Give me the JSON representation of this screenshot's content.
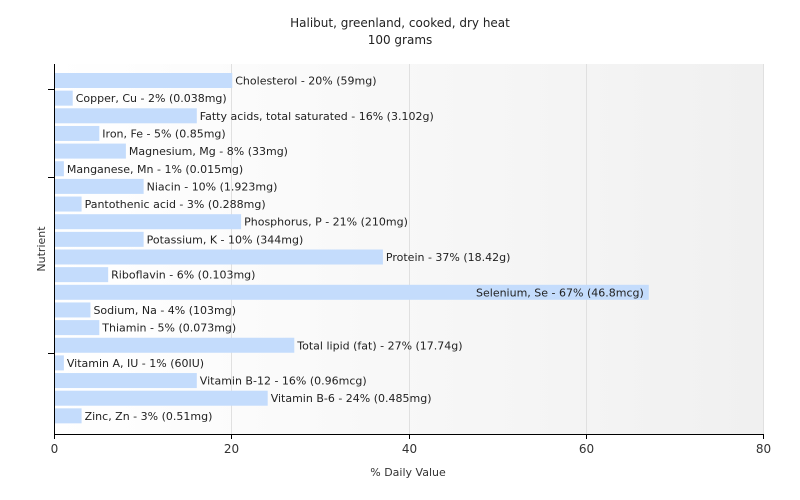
{
  "chart_data": {
    "type": "bar",
    "orientation": "horizontal",
    "title": "Halibut, greenland, cooked, dry heat",
    "subtitle": "100 grams",
    "xlabel": "% Daily Value",
    "ylabel": "Nutrient",
    "xlim": [
      0,
      80
    ],
    "xticks": [
      0,
      20,
      40,
      60,
      80
    ],
    "grid": true,
    "bar_color": "#c4dcfc",
    "categories": [
      "Cholesterol",
      "Copper, Cu",
      "Fatty acids, total saturated",
      "Iron, Fe",
      "Magnesium, Mg",
      "Manganese, Mn",
      "Niacin",
      "Pantothenic acid",
      "Phosphorus, P",
      "Potassium, K",
      "Protein",
      "Riboflavin",
      "Selenium, Se",
      "Sodium, Na",
      "Thiamin",
      "Total lipid (fat)",
      "Vitamin A, IU",
      "Vitamin B-12",
      "Vitamin B-6",
      "Zinc, Zn"
    ],
    "values": [
      20,
      2,
      16,
      5,
      8,
      1,
      10,
      3,
      21,
      10,
      37,
      6,
      67,
      4,
      5,
      27,
      1,
      16,
      24,
      3
    ],
    "labels": [
      "Cholesterol - 20% (59mg)",
      "Copper, Cu - 2% (0.038mg)",
      "Fatty acids, total saturated - 16% (3.102g)",
      "Iron, Fe - 5% (0.85mg)",
      "Magnesium, Mg - 8% (33mg)",
      "Manganese, Mn - 1% (0.015mg)",
      "Niacin - 10% (1.923mg)",
      "Pantothenic acid - 3% (0.288mg)",
      "Phosphorus, P - 21% (210mg)",
      "Potassium, K - 10% (344mg)",
      "Protein - 37% (18.42g)",
      "Riboflavin - 6% (0.103mg)",
      "Selenium, Se - 67% (46.8mcg)",
      "Sodium, Na - 4% (103mg)",
      "Thiamin - 5% (0.073mg)",
      "Total lipid (fat) - 27% (17.74g)",
      "Vitamin A, IU - 1% (60IU)",
      "Vitamin B-12 - 16% (0.96mcg)",
      "Vitamin B-6 - 24% (0.485mg)",
      "Zinc, Zn - 3% (0.51mg)"
    ]
  }
}
